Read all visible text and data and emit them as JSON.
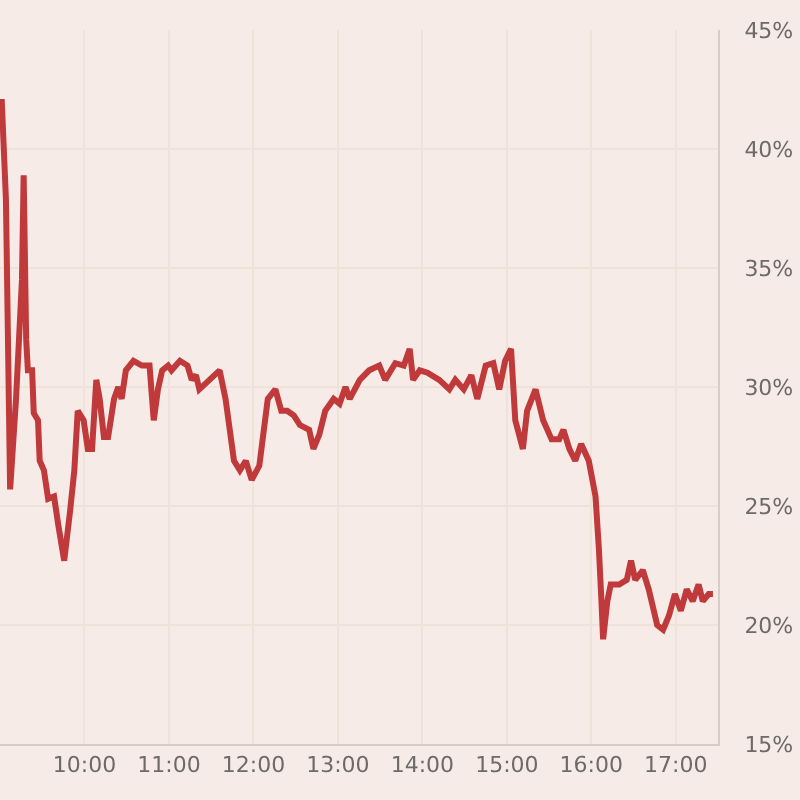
{
  "chart_data": {
    "type": "line",
    "grid": true,
    "line_style": "solid",
    "xlim": [
      9,
      17.5
    ],
    "xticks": [
      {
        "value": 10,
        "label": "10:00"
      },
      {
        "value": 11,
        "label": "11:00"
      },
      {
        "value": 12,
        "label": "12:00"
      },
      {
        "value": 13,
        "label": "13:00"
      },
      {
        "value": 14,
        "label": "14:00"
      },
      {
        "value": 15,
        "label": "15:00"
      },
      {
        "value": 16,
        "label": "16:00"
      },
      {
        "value": 17,
        "label": "17:00"
      }
    ],
    "ylim": [
      15,
      45
    ],
    "yticks": [
      {
        "value": 15,
        "label": "15%"
      },
      {
        "value": 20,
        "label": "20%"
      },
      {
        "value": 25,
        "label": "25%"
      },
      {
        "value": 30,
        "label": "30%"
      },
      {
        "value": 35,
        "label": "35%"
      },
      {
        "value": 40,
        "label": "40%"
      },
      {
        "value": 45,
        "label": "45%"
      }
    ],
    "series": [
      {
        "color": "#c0393b",
        "x": [
          9.02,
          9.07,
          9.12,
          9.19,
          9.26,
          9.28,
          9.31,
          9.33,
          9.38,
          9.4,
          9.45,
          9.47,
          9.52,
          9.57,
          9.64,
          9.69,
          9.76,
          9.83,
          9.88,
          9.92,
          9.99,
          10.04,
          10.09,
          10.14,
          10.18,
          10.23,
          10.28,
          10.35,
          10.4,
          10.44,
          10.49,
          10.58,
          10.68,
          10.77,
          10.82,
          10.87,
          10.92,
          10.99,
          11.03,
          11.13,
          11.22,
          11.27,
          11.32,
          11.36,
          11.48,
          11.6,
          11.67,
          11.77,
          11.84,
          11.91,
          11.98,
          12.07,
          12.17,
          12.26,
          12.33,
          12.4,
          12.48,
          12.55,
          12.66,
          12.71,
          12.78,
          12.85,
          12.95,
          13.02,
          13.09,
          13.14,
          13.26,
          13.37,
          13.49,
          13.56,
          13.68,
          13.78,
          13.85,
          13.89,
          13.97,
          14.06,
          14.2,
          14.32,
          14.39,
          14.49,
          14.58,
          14.65,
          14.75,
          14.84,
          14.91,
          14.98,
          15.05,
          15.1,
          15.19,
          15.24,
          15.34,
          15.43,
          15.53,
          15.62,
          15.67,
          15.74,
          15.81,
          15.88,
          15.97,
          16.05,
          16.09,
          16.12,
          16.14,
          16.19,
          16.23,
          16.33,
          16.42,
          16.47,
          16.52,
          16.61,
          16.68,
          16.78,
          16.85,
          16.92,
          16.99,
          17.06,
          17.13,
          17.2,
          17.27,
          17.32,
          17.39,
          17.44
        ],
        "values": [
          42.1,
          37.9,
          25.7,
          29.5,
          34.5,
          38.9,
          32.0,
          30.7,
          30.7,
          28.9,
          28.6,
          26.9,
          26.5,
          25.3,
          25.4,
          24.2,
          22.7,
          24.8,
          26.5,
          29.0,
          28.6,
          27.4,
          27.4,
          30.3,
          29.5,
          27.9,
          27.9,
          29.5,
          30.0,
          29.5,
          30.7,
          31.1,
          30.9,
          30.9,
          28.6,
          29.9,
          30.7,
          30.9,
          30.7,
          31.1,
          30.9,
          30.3,
          30.5,
          29.9,
          30.3,
          30.7,
          29.5,
          26.9,
          26.5,
          26.9,
          26.1,
          26.7,
          29.5,
          29.9,
          29.0,
          29.0,
          28.8,
          28.4,
          28.2,
          27.4,
          28.0,
          29.0,
          29.5,
          29.3,
          30.0,
          29.5,
          30.3,
          30.7,
          30.9,
          30.3,
          31.0,
          30.9,
          31.6,
          30.3,
          30.7,
          30.6,
          30.3,
          29.9,
          30.3,
          29.9,
          30.5,
          29.5,
          30.9,
          31.0,
          29.9,
          31.1,
          31.6,
          28.6,
          27.4,
          29.0,
          29.9,
          28.6,
          27.8,
          27.8,
          28.2,
          27.4,
          26.9,
          27.6,
          26.9,
          25.4,
          23.2,
          21.0,
          19.4,
          21.0,
          21.7,
          21.7,
          21.9,
          22.7,
          21.9,
          22.3,
          21.5,
          20.0,
          19.8,
          20.4,
          21.3,
          20.6,
          21.5,
          21.0,
          21.7,
          21.0,
          21.3,
          21.3
        ]
      }
    ]
  }
}
